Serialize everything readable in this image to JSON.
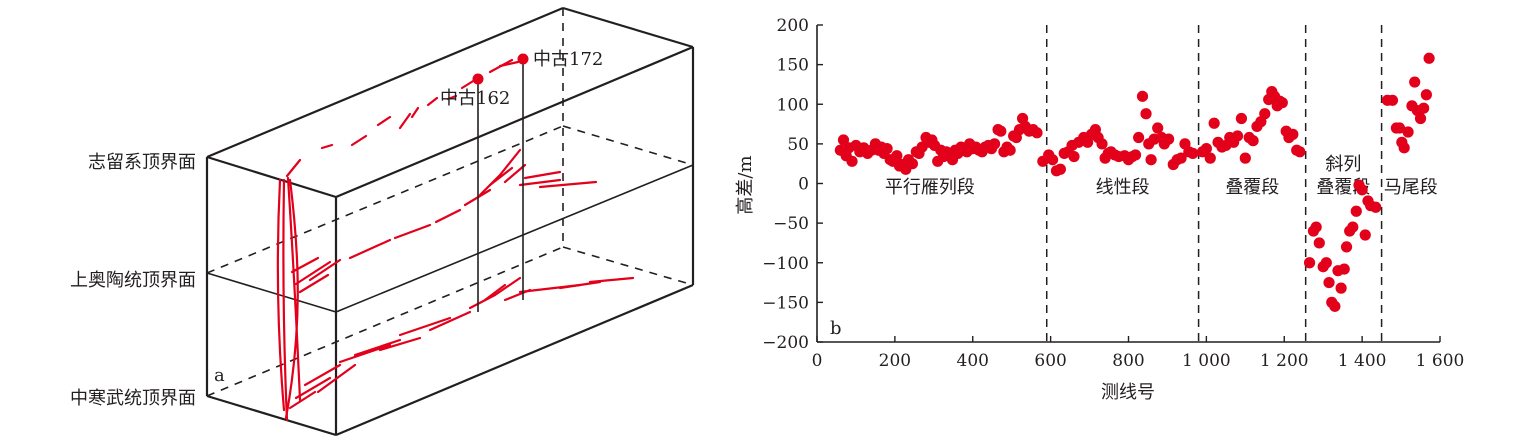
{
  "panel_a": {
    "panel_label": "a",
    "horizons": [
      {
        "label": "志留系顶界面"
      },
      {
        "label": "上奥陶统顶界面"
      },
      {
        "label": "中寒武统顶界面"
      }
    ],
    "wells": [
      {
        "label": "中古162"
      },
      {
        "label": "中古172"
      }
    ],
    "colors": {
      "fault": "#e3001b",
      "frame": "#231f20"
    }
  },
  "chart_data": {
    "type": "scatter",
    "panel_label": "b",
    "xlabel": "测线号",
    "ylabel": "高差/m",
    "xlim": [
      0,
      1600
    ],
    "ylim": [
      -200,
      200
    ],
    "x_ticks": [
      0,
      200,
      400,
      600,
      800,
      1000,
      1200,
      1400,
      1600
    ],
    "x_tick_labels": [
      "0",
      "200",
      "400",
      "600",
      "800",
      "1 000",
      "1 200",
      "1 400",
      "1 600"
    ],
    "y_ticks": [
      200,
      150,
      100,
      50,
      0,
      -50,
      -100,
      -150,
      -200
    ],
    "y_tick_labels": [
      "200",
      "150",
      "100",
      "50",
      "0",
      "−50",
      "−100",
      "−150",
      "−200"
    ],
    "grid": false,
    "marker_color": "#e3001b",
    "dividers": [
      590,
      980,
      1255,
      1450
    ],
    "segments": [
      {
        "lines": [
          "平行雁列段"
        ],
        "x": 290,
        "y": -12
      },
      {
        "lines": [
          "线性段"
        ],
        "x": 785,
        "y": -12
      },
      {
        "lines": [
          "叠覆段"
        ],
        "x": 1118,
        "y": -12
      },
      {
        "lines": [
          "斜列",
          "叠覆段"
        ],
        "x": 1352,
        "y": -12
      },
      {
        "lines": [
          "马尾段"
        ],
        "x": 1525,
        "y": -12
      }
    ],
    "points": [
      [
        60,
        42
      ],
      [
        68,
        55
      ],
      [
        75,
        35
      ],
      [
        82,
        45
      ],
      [
        90,
        28
      ],
      [
        100,
        48
      ],
      [
        110,
        40
      ],
      [
        120,
        45
      ],
      [
        130,
        38
      ],
      [
        140,
        42
      ],
      [
        150,
        50
      ],
      [
        158,
        42
      ],
      [
        165,
        46
      ],
      [
        172,
        38
      ],
      [
        180,
        44
      ],
      [
        188,
        30
      ],
      [
        195,
        28
      ],
      [
        205,
        35
      ],
      [
        212,
        22
      ],
      [
        220,
        24
      ],
      [
        228,
        18
      ],
      [
        235,
        30
      ],
      [
        245,
        25
      ],
      [
        255,
        40
      ],
      [
        262,
        38
      ],
      [
        270,
        46
      ],
      [
        280,
        58
      ],
      [
        288,
        52
      ],
      [
        295,
        55
      ],
      [
        302,
        48
      ],
      [
        310,
        28
      ],
      [
        318,
        42
      ],
      [
        325,
        34
      ],
      [
        332,
        40
      ],
      [
        340,
        36
      ],
      [
        348,
        30
      ],
      [
        355,
        42
      ],
      [
        362,
        38
      ],
      [
        370,
        46
      ],
      [
        378,
        44
      ],
      [
        385,
        40
      ],
      [
        392,
        50
      ],
      [
        400,
        44
      ],
      [
        408,
        46
      ],
      [
        416,
        42
      ],
      [
        424,
        40
      ],
      [
        432,
        46
      ],
      [
        440,
        48
      ],
      [
        448,
        44
      ],
      [
        456,
        50
      ],
      [
        465,
        68
      ],
      [
        472,
        66
      ],
      [
        480,
        40
      ],
      [
        488,
        46
      ],
      [
        496,
        42
      ],
      [
        505,
        60
      ],
      [
        512,
        58
      ],
      [
        520,
        68
      ],
      [
        528,
        82
      ],
      [
        535,
        72
      ],
      [
        545,
        66
      ],
      [
        555,
        68
      ],
      [
        565,
        64
      ],
      [
        580,
        28
      ],
      [
        595,
        36
      ],
      [
        605,
        30
      ],
      [
        615,
        16
      ],
      [
        625,
        18
      ],
      [
        635,
        38
      ],
      [
        645,
        40
      ],
      [
        655,
        48
      ],
      [
        660,
        34
      ],
      [
        672,
        52
      ],
      [
        685,
        58
      ],
      [
        695,
        52
      ],
      [
        705,
        62
      ],
      [
        715,
        68
      ],
      [
        722,
        58
      ],
      [
        732,
        50
      ],
      [
        740,
        32
      ],
      [
        748,
        38
      ],
      [
        755,
        40
      ],
      [
        765,
        36
      ],
      [
        775,
        34
      ],
      [
        790,
        35
      ],
      [
        800,
        30
      ],
      [
        810,
        34
      ],
      [
        818,
        36
      ],
      [
        826,
        58
      ],
      [
        836,
        110
      ],
      [
        845,
        88
      ],
      [
        852,
        50
      ],
      [
        858,
        30
      ],
      [
        866,
        56
      ],
      [
        875,
        70
      ],
      [
        885,
        58
      ],
      [
        892,
        50
      ],
      [
        903,
        56
      ],
      [
        915,
        24
      ],
      [
        925,
        30
      ],
      [
        935,
        32
      ],
      [
        945,
        50
      ],
      [
        955,
        40
      ],
      [
        965,
        38
      ],
      [
        990,
        40
      ],
      [
        1000,
        44
      ],
      [
        1010,
        32
      ],
      [
        1020,
        76
      ],
      [
        1030,
        52
      ],
      [
        1040,
        46
      ],
      [
        1050,
        48
      ],
      [
        1060,
        58
      ],
      [
        1070,
        52
      ],
      [
        1080,
        60
      ],
      [
        1090,
        82
      ],
      [
        1100,
        32
      ],
      [
        1110,
        58
      ],
      [
        1120,
        54
      ],
      [
        1130,
        72
      ],
      [
        1140,
        78
      ],
      [
        1150,
        88
      ],
      [
        1160,
        106
      ],
      [
        1168,
        116
      ],
      [
        1175,
        110
      ],
      [
        1182,
        98
      ],
      [
        1188,
        104
      ],
      [
        1195,
        102
      ],
      [
        1205,
        66
      ],
      [
        1212,
        58
      ],
      [
        1222,
        62
      ],
      [
        1232,
        42
      ],
      [
        1240,
        40
      ],
      [
        1265,
        -100
      ],
      [
        1275,
        -60
      ],
      [
        1282,
        -55
      ],
      [
        1290,
        -75
      ],
      [
        1300,
        -105
      ],
      [
        1308,
        -100
      ],
      [
        1315,
        -125
      ],
      [
        1322,
        -150
      ],
      [
        1330,
        -155
      ],
      [
        1338,
        -110
      ],
      [
        1346,
        -132
      ],
      [
        1354,
        -108
      ],
      [
        1360,
        -80
      ],
      [
        1368,
        -60
      ],
      [
        1376,
        -55
      ],
      [
        1385,
        -35
      ],
      [
        1392,
        -2
      ],
      [
        1400,
        -8
      ],
      [
        1408,
        -65
      ],
      [
        1415,
        -22
      ],
      [
        1422,
        -28
      ],
      [
        1435,
        -30
      ],
      [
        1465,
        105
      ],
      [
        1478,
        105
      ],
      [
        1488,
        70
      ],
      [
        1496,
        70
      ],
      [
        1502,
        52
      ],
      [
        1508,
        45
      ],
      [
        1518,
        65
      ],
      [
        1528,
        98
      ],
      [
        1535,
        128
      ],
      [
        1542,
        92
      ],
      [
        1550,
        82
      ],
      [
        1558,
        95
      ],
      [
        1565,
        112
      ],
      [
        1572,
        158
      ]
    ]
  }
}
